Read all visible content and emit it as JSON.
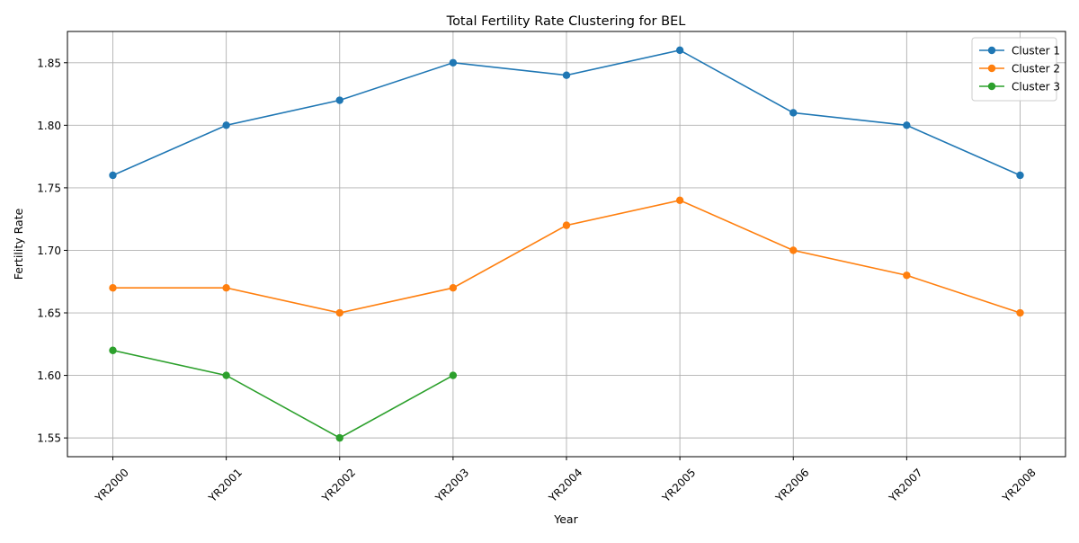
{
  "chart_data": {
    "type": "line",
    "title": "Total Fertility Rate Clustering for BEL",
    "xlabel": "Year",
    "ylabel": "Fertility Rate",
    "categories": [
      "YR2000",
      "YR2001",
      "YR2002",
      "YR2003",
      "YR2004",
      "YR2005",
      "YR2006",
      "YR2007",
      "YR2008"
    ],
    "ylim": [
      1.535,
      1.875
    ],
    "yticks": [
      1.55,
      1.6,
      1.65,
      1.7,
      1.75,
      1.8,
      1.85
    ],
    "ytick_labels": [
      "1.55",
      "1.60",
      "1.65",
      "1.70",
      "1.75",
      "1.80",
      "1.85"
    ],
    "grid": true,
    "legend_position": "top-right",
    "series": [
      {
        "name": "Cluster 1",
        "color": "#1f77b4",
        "values": [
          1.76,
          1.8,
          1.82,
          1.85,
          1.84,
          1.86,
          1.81,
          1.8,
          1.76
        ]
      },
      {
        "name": "Cluster 2",
        "color": "#ff7f0e",
        "values": [
          1.67,
          1.67,
          1.65,
          1.67,
          1.72,
          1.74,
          1.7,
          1.68,
          1.65
        ]
      },
      {
        "name": "Cluster 3",
        "color": "#2ca02c",
        "values": [
          1.62,
          1.6,
          1.55,
          1.6,
          null,
          null,
          null,
          null,
          null
        ]
      }
    ]
  }
}
